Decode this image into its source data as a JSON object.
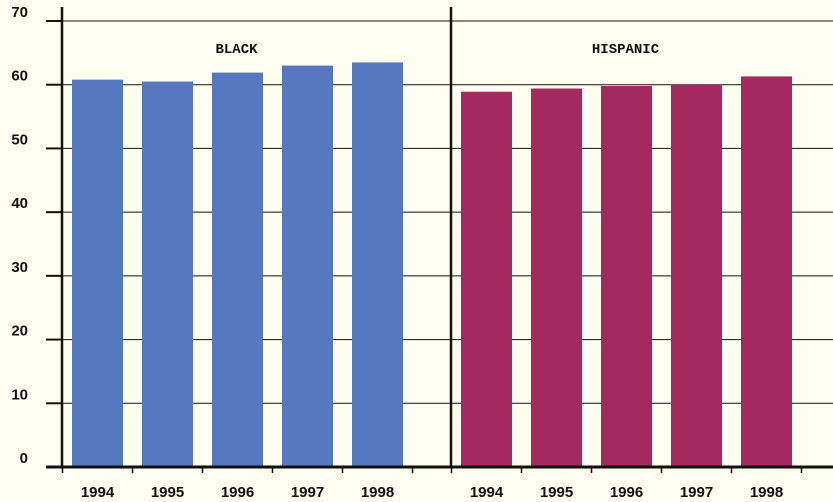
{
  "chart_data": {
    "type": "bar",
    "ylim": [
      0,
      70
    ],
    "yticks": [
      0,
      10,
      20,
      30,
      40,
      50,
      60,
      70
    ],
    "grid": true,
    "panels": [
      {
        "title": "BLACK",
        "color": "#5678c0",
        "categories": [
          "1994",
          "1995",
          "1996",
          "1997",
          "1998"
        ],
        "values": [
          60.8,
          60.5,
          61.9,
          63.0,
          63.5
        ]
      },
      {
        "title": "HISPANIC",
        "color": "#a3295e",
        "categories": [
          "1994",
          "1995",
          "1996",
          "1997",
          "1998"
        ],
        "values": [
          58.9,
          59.4,
          59.8,
          60.0,
          61.3
        ]
      }
    ]
  }
}
